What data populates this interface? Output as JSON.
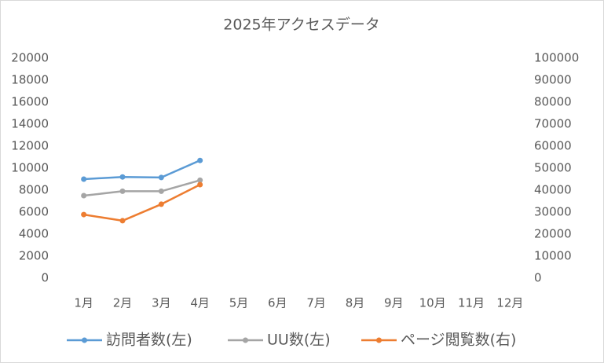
{
  "chart_data": {
    "type": "line",
    "title": "2025年アクセスデータ",
    "categories": [
      "1月",
      "2月",
      "3月",
      "4月",
      "5月",
      "6月",
      "7月",
      "8月",
      "9月",
      "10月",
      "11月",
      "12月"
    ],
    "series": [
      {
        "name": "訪問者数(左)",
        "color": "#5b9bd5",
        "values": [
          9000,
          9200,
          9150,
          10700,
          null,
          null,
          null,
          null,
          null,
          null,
          null,
          null
        ]
      },
      {
        "name": "UU数(左)",
        "color": "#a5a5a5",
        "values": [
          7500,
          7900,
          7900,
          8900,
          null,
          null,
          null,
          null,
          null,
          null,
          null,
          null
        ]
      },
      {
        "name": "ページ閲覧数(右)",
        "color": "#ed7d31",
        "axis": "y2",
        "values": [
          28900,
          26100,
          33600,
          42500,
          null,
          null,
          null,
          null,
          null,
          null,
          null,
          null
        ]
      }
    ],
    "ylim": [
      0,
      20000
    ],
    "yticks": [
      0,
      2000,
      4000,
      6000,
      8000,
      10000,
      12000,
      14000,
      16000,
      18000,
      20000
    ],
    "y2lim": [
      0,
      100000
    ],
    "y2ticks": [
      0,
      10000,
      20000,
      30000,
      40000,
      50000,
      60000,
      70000,
      80000,
      90000,
      100000
    ],
    "grid": false,
    "legend": "bottom"
  }
}
